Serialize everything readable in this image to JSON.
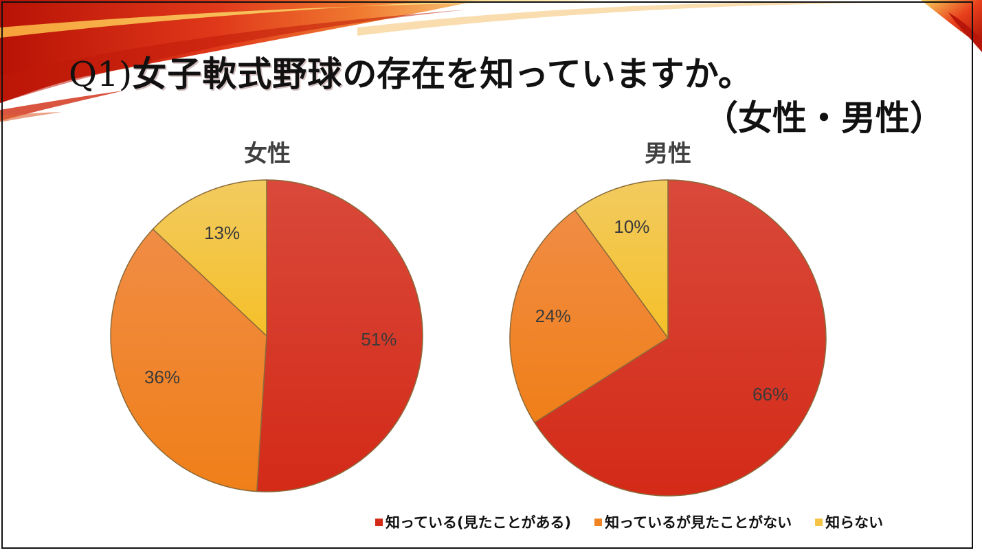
{
  "slide": {
    "title_q": "Q1)",
    "title_highlight": "女子軟式野球",
    "title_rest": "の存在を知っていますか。",
    "subtitle": "（女性・男性）"
  },
  "colors": {
    "known_seen": "#d42a18",
    "known_not_seen": "#f08422",
    "unknown": "#f5c444",
    "accent_red": "#c8200e"
  },
  "legend": [
    {
      "label": "知っている(見たことがある)",
      "color": "#d42a18"
    },
    {
      "label": "知っているが見たことがない",
      "color": "#f08422"
    },
    {
      "label": "知らない",
      "color": "#f5c444"
    }
  ],
  "chart_data": [
    {
      "type": "pie",
      "title": "女性",
      "categories": [
        "知っている(見たことがある)",
        "知っているが見たことがない",
        "知らない"
      ],
      "values": [
        51,
        36,
        13
      ],
      "labels": [
        "51%",
        "36%",
        "13%"
      ],
      "legend_position": "bottom-right"
    },
    {
      "type": "pie",
      "title": "男性",
      "categories": [
        "知っている(見たことがある)",
        "知っているが見たことがない",
        "知らない"
      ],
      "values": [
        66,
        24,
        10
      ],
      "labels": [
        "66%",
        "24%",
        "10%"
      ],
      "legend_position": "bottom-right"
    }
  ]
}
